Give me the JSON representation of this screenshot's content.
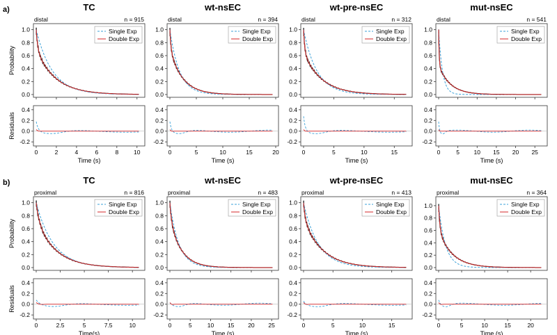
{
  "figure": {
    "panel_labels": [
      "a)",
      "b)"
    ],
    "legend_single": "Single Exp",
    "legend_double": "Double Exp",
    "ylabel_prob": "Probability",
    "ylabel_resid": "Residuals",
    "colors": {
      "single": "#3aa0d8",
      "double": "#d62728",
      "data": "#222222"
    }
  },
  "chart_data": [
    {
      "type": "line",
      "row": "a",
      "title": "TC",
      "region": "distal",
      "n_label": "n = 915",
      "xmax": 10.5,
      "xticks": [
        0,
        2,
        4,
        6,
        8,
        10
      ],
      "xlabel": "Time (s)",
      "tau_single": 1.6,
      "tau_fast": 0.15,
      "tau_slow": 1.9,
      "w_fast": 0.3,
      "resid_amp": 0.2,
      "ylim": [
        0,
        1.05
      ],
      "resid_ylim": [
        -0.25,
        0.45
      ],
      "yticks": [
        0.0,
        0.2,
        0.4,
        0.6,
        0.8,
        1.0
      ],
      "resid_yticks": [
        -0.2,
        0.0,
        0.2,
        0.4
      ]
    },
    {
      "type": "line",
      "row": "a",
      "title": "wt-nsEC",
      "region": "distal",
      "n_label": "n = 394",
      "xmax": 20,
      "xticks": [
        0,
        5,
        10,
        15,
        20
      ],
      "xlabel": "Time (s)",
      "tau_single": 1.8,
      "tau_fast": 0.2,
      "tau_slow": 2.4,
      "w_fast": 0.3,
      "resid_amp": 0.2,
      "ylim": [
        0,
        1.05
      ],
      "resid_ylim": [
        -0.25,
        0.45
      ],
      "yticks": [
        0.0,
        0.2,
        0.4,
        0.6,
        0.8,
        1.0
      ],
      "resid_yticks": [
        -0.2,
        0.0,
        0.2,
        0.4
      ]
    },
    {
      "type": "line",
      "row": "a",
      "title": "wt-pre-nsEC",
      "region": "distal",
      "n_label": "n = 312",
      "xmax": 17.5,
      "xticks": [
        0,
        5,
        10,
        15
      ],
      "xlabel": "Time (s)",
      "tau_single": 2.2,
      "tau_fast": 0.2,
      "tau_slow": 3.0,
      "w_fast": 0.35,
      "resid_amp": 0.3,
      "ylim": [
        0,
        1.05
      ],
      "resid_ylim": [
        -0.25,
        0.45
      ],
      "yticks": [
        0.0,
        0.2,
        0.4,
        0.6,
        0.8,
        1.0
      ],
      "resid_yticks": [
        -0.2,
        0.0,
        0.2,
        0.4
      ]
    },
    {
      "type": "line",
      "row": "a",
      "title": "mut-nsEC",
      "region": "distal",
      "n_label": "n = 541",
      "xmax": 27.5,
      "xticks": [
        0,
        5,
        10,
        15,
        20,
        25
      ],
      "xlabel": "Time (s)",
      "tau_single": 1.0,
      "tau_fast": 0.15,
      "tau_slow": 3.0,
      "w_fast": 0.55,
      "resid_amp": 0.2,
      "ylim": [
        0,
        1.05
      ],
      "resid_ylim": [
        -0.25,
        0.45
      ],
      "yticks": [
        0.0,
        0.2,
        0.4,
        0.6,
        0.8,
        1.0
      ],
      "resid_yticks": [
        -0.2,
        0.0,
        0.2,
        0.4
      ]
    },
    {
      "type": "line",
      "row": "b",
      "title": "TC",
      "region": "proximal",
      "n_label": "n = 816",
      "xmax": 11,
      "xticks": [
        0,
        2.5,
        5,
        7.5,
        10
      ],
      "xtick_labels": [
        "0",
        "2.5",
        "5",
        "7.5",
        "10"
      ],
      "xlabel": "Time(s)",
      "tau_single": 1.8,
      "tau_fast": 0.3,
      "tau_slow": 2.0,
      "w_fast": 0.25,
      "resid_amp": 0.1,
      "ylim": [
        0,
        1.05
      ],
      "resid_ylim": [
        -0.25,
        0.45
      ],
      "yticks": [
        0.0,
        0.2,
        0.4,
        0.6,
        0.8,
        1.0
      ],
      "resid_yticks": [
        -0.2,
        0.0,
        0.2,
        0.4
      ]
    },
    {
      "type": "line",
      "row": "b",
      "title": "wt-nsEC",
      "region": "proximal",
      "n_label": "n = 483",
      "xmax": 26,
      "xticks": [
        0,
        5,
        10,
        15,
        20,
        25
      ],
      "xlabel": "Time (s)",
      "tau_single": 2.2,
      "tau_fast": 0.4,
      "tau_slow": 2.8,
      "w_fast": 0.25,
      "resid_amp": 0.05,
      "ylim": [
        0,
        1.05
      ],
      "resid_ylim": [
        -0.25,
        0.45
      ],
      "yticks": [
        0.0,
        0.2,
        0.4,
        0.6,
        0.8,
        1.0
      ],
      "resid_yticks": [
        -0.2,
        0.0,
        0.2,
        0.4
      ]
    },
    {
      "type": "line",
      "row": "b",
      "title": "wt-pre-nsEC",
      "region": "proximal",
      "n_label": "n = 413",
      "xmax": 18,
      "xticks": [
        0,
        5,
        10,
        15
      ],
      "xlabel": "Time (s)",
      "tau_single": 2.5,
      "tau_fast": 0.3,
      "tau_slow": 3.2,
      "w_fast": 0.25,
      "resid_amp": 0.08,
      "ylim": [
        0,
        1.05
      ],
      "resid_ylim": [
        -0.25,
        0.45
      ],
      "yticks": [
        0.0,
        0.2,
        0.4,
        0.6,
        0.8,
        1.0
      ],
      "resid_yticks": [
        -0.2,
        0.0,
        0.2,
        0.4
      ]
    },
    {
      "type": "line",
      "row": "b",
      "title": "mut-nsEC",
      "region": "proximal",
      "n_label": "n = 364",
      "xmax": 23,
      "xticks": [
        0,
        5,
        10,
        15,
        20
      ],
      "xlabel": "Time (s)",
      "tau_single": 1.5,
      "tau_fast": 0.3,
      "tau_slow": 3.0,
      "w_fast": 0.4,
      "resid_amp": 0.1,
      "ylim": [
        0,
        1.1
      ],
      "resid_ylim": [
        -0.25,
        0.45
      ],
      "yticks": [
        0.0,
        0.2,
        0.4,
        0.6,
        0.8,
        1.0
      ],
      "resid_yticks": [
        -0.2,
        0.0,
        0.2,
        0.4
      ]
    }
  ]
}
